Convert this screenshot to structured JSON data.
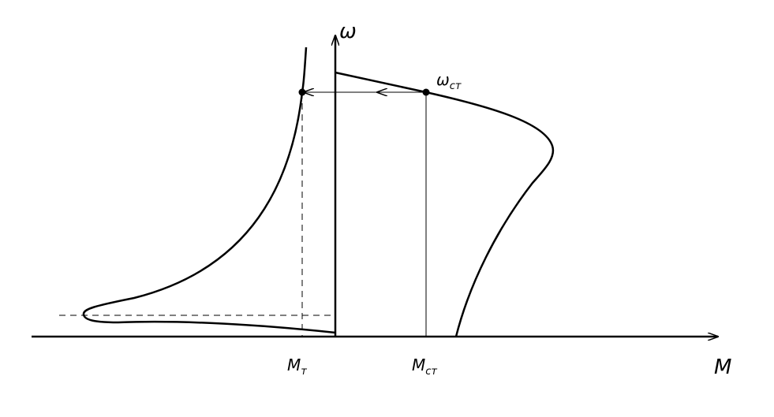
{
  "axes": {
    "y_label": "ω",
    "x_label": "M"
  },
  "points": {
    "omega_st": {
      "base": "ω",
      "sub": "ст"
    },
    "m_t": {
      "base": "M",
      "sub": "т"
    },
    "m_st": {
      "base": "M",
      "sub": "ст"
    }
  }
}
